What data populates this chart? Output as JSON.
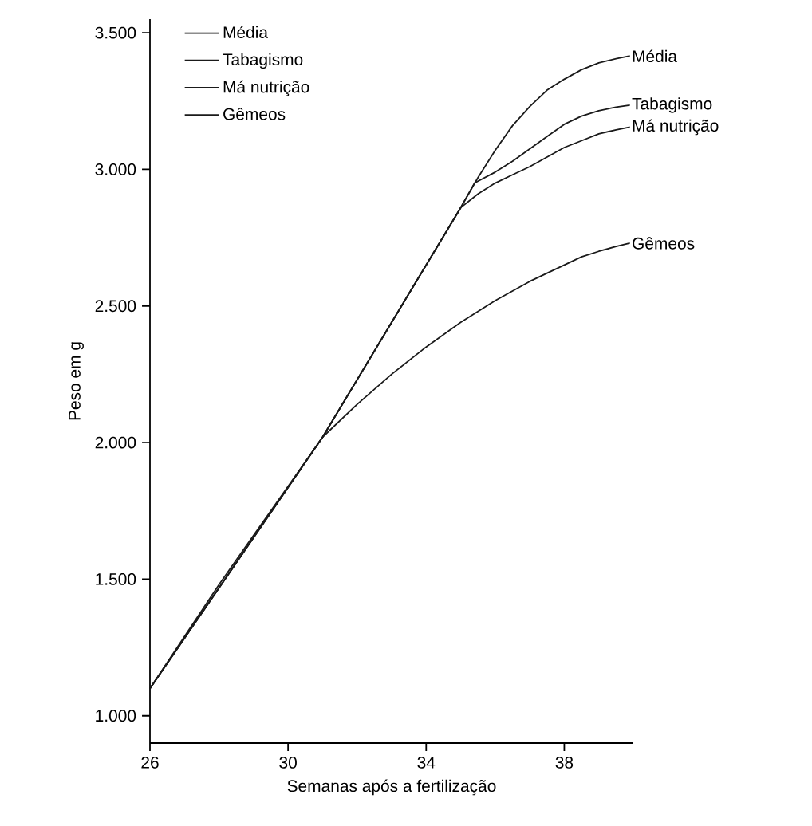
{
  "chart_data": {
    "type": "line",
    "xlabel": "Semanas após a fertilização",
    "ylabel": "Peso em g",
    "xlim": [
      26,
      40
    ],
    "ylim": [
      900,
      3550
    ],
    "xticks": [
      26,
      30,
      34,
      38
    ],
    "yticks": [
      {
        "value": 1000,
        "label": "1.000"
      },
      {
        "value": 1500,
        "label": "1.500"
      },
      {
        "value": 2000,
        "label": "2.000"
      },
      {
        "value": 2500,
        "label": "2.500"
      },
      {
        "value": 3000,
        "label": "3.000"
      },
      {
        "value": 3500,
        "label": "3.500"
      }
    ],
    "legend": "top left",
    "grid": false,
    "series": [
      {
        "name": "Média",
        "color": "#1a1a1a",
        "x": [
          26,
          27,
          28,
          29,
          30,
          31,
          32,
          33,
          34,
          35,
          35.5,
          36,
          36.5,
          37,
          37.5,
          38,
          38.5,
          39,
          39.5,
          39.9
        ],
        "values": [
          1100,
          1290,
          1480,
          1660,
          1840,
          2020,
          2230,
          2440,
          2650,
          2860,
          2970,
          3070,
          3160,
          3230,
          3290,
          3330,
          3365,
          3390,
          3405,
          3415
        ]
      },
      {
        "name": "Tabagismo",
        "color": "#1a1a1a",
        "x": [
          26,
          31,
          35,
          35.4,
          36,
          36.5,
          37,
          37.5,
          38,
          38.5,
          39,
          39.5,
          39.9
        ],
        "values": [
          1100,
          2020,
          2860,
          2950,
          2990,
          3030,
          3075,
          3120,
          3165,
          3195,
          3215,
          3228,
          3235
        ]
      },
      {
        "name": "Má nutrição",
        "color": "#1a1a1a",
        "x": [
          26,
          31,
          35,
          35.5,
          36,
          36.5,
          37,
          37.5,
          38,
          38.5,
          39,
          39.5,
          39.9
        ],
        "values": [
          1100,
          2020,
          2860,
          2910,
          2950,
          2980,
          3010,
          3045,
          3080,
          3105,
          3130,
          3145,
          3155
        ]
      },
      {
        "name": "Gêmeos",
        "color": "#1a1a1a",
        "x": [
          26,
          31,
          32,
          33,
          34,
          35,
          36,
          37,
          38,
          38.5,
          39,
          39.5,
          39.9
        ],
        "values": [
          1100,
          2020,
          2140,
          2250,
          2350,
          2440,
          2520,
          2590,
          2650,
          2680,
          2700,
          2718,
          2730
        ]
      }
    ]
  }
}
